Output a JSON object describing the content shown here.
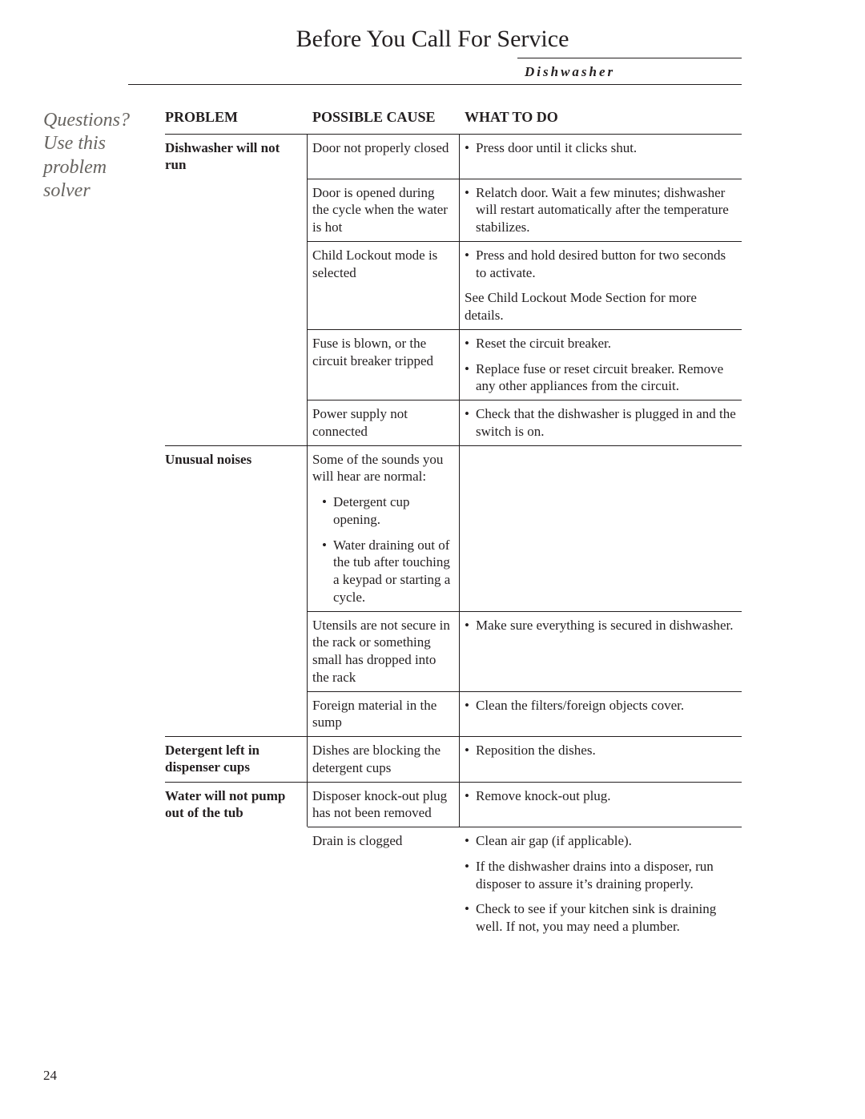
{
  "page_title": "Before You Call For Service",
  "subhead": "Dishwasher",
  "margin_note_l1": "Questions?",
  "margin_note_l2": "Use this",
  "margin_note_l3": "problem",
  "margin_note_l4": "solver",
  "page_number": "24",
  "columns": {
    "c1": "PROBLEM",
    "c2": "POSSIBLE CAUSE",
    "c3": "WHAT TO DO"
  },
  "groups": [
    {
      "problem": "Dishwasher will not run",
      "causes": [
        {
          "cause": "Door not properly closed",
          "todos": [
            "Press door until it clicks shut."
          ]
        },
        {
          "cause": "Door is opened during the cycle when the water is hot",
          "todos": [
            "Relatch door. Wait a few minutes; dishwasher will restart automatically after the temperature stabilizes."
          ]
        },
        {
          "cause": "Child Lockout mode is selected",
          "todos": [
            "Press and hold desired button for two seconds to activate."
          ],
          "extra": "See Child Lockout Mode Section for more details."
        },
        {
          "cause": "Fuse is blown, or the circuit breaker tripped",
          "todos": [
            "Reset the circuit breaker.",
            "Replace fuse or reset circuit breaker. Remove any other appliances from the circuit."
          ]
        },
        {
          "cause": "Power supply not connected",
          "todos": [
            "Check that the dishwasher is plugged in and the switch is on."
          ]
        }
      ]
    },
    {
      "problem": "Unusual noises",
      "causes": [
        {
          "cause": "Some of the sounds you will hear are normal:",
          "list": [
            "Detergent cup opening.",
            "Water draining out of the tub after touching a keypad or starting a cycle."
          ],
          "todos": []
        },
        {
          "cause": "Utensils are not secure in the rack or something small has dropped into the rack",
          "todos": [
            "Make sure everything is secured in dishwasher."
          ]
        },
        {
          "cause": "Foreign material in the sump",
          "todos": [
            "Clean the filters/foreign objects cover."
          ]
        }
      ]
    },
    {
      "problem": "Detergent left in dispenser cups",
      "causes": [
        {
          "cause": "Dishes are blocking the detergent cups",
          "todos": [
            "Reposition the dishes."
          ]
        }
      ]
    },
    {
      "problem": "Water will not pump out of the tub",
      "causes": [
        {
          "cause": "Disposer knock-out plug has not been removed",
          "todos": [
            "Remove knock-out plug."
          ]
        },
        {
          "cause": "Drain is clogged",
          "todos": [
            "Clean air gap (if applicable).",
            "If the dishwasher drains into a disposer, run disposer to assure it’s draining properly.",
            "Check to see if your kitchen sink is draining well. If not, you may need a plumber."
          ]
        }
      ]
    }
  ]
}
